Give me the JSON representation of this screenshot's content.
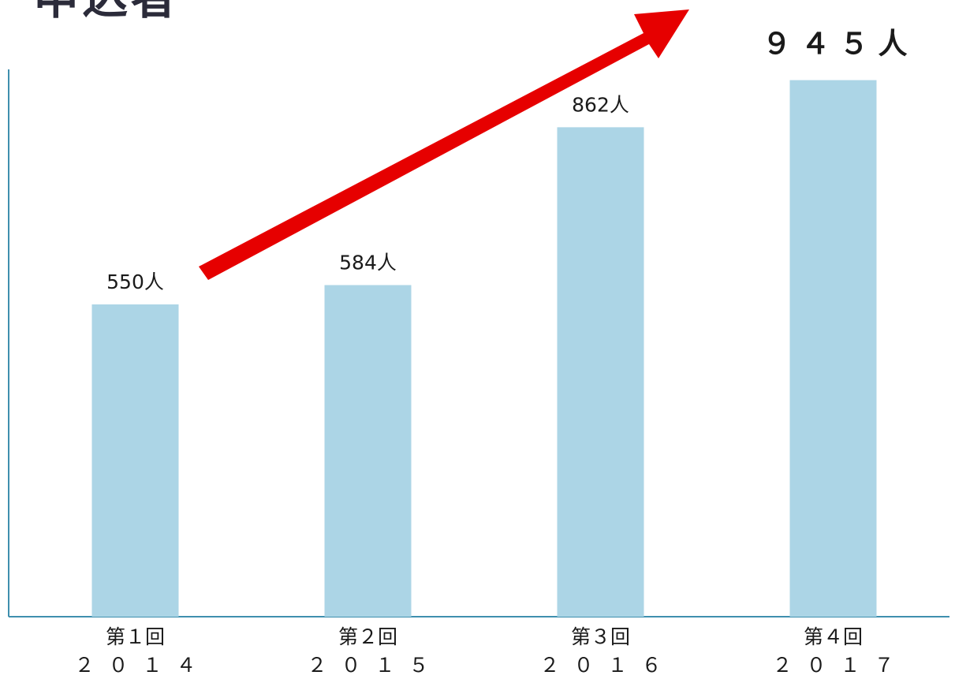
{
  "title": "申込者",
  "chart_data": {
    "type": "bar",
    "categories": [
      {
        "round": "第１回",
        "year": "２０１４"
      },
      {
        "round": "第２回",
        "year": "２０１５"
      },
      {
        "round": "第３回",
        "year": "２０１６"
      },
      {
        "round": "第４回",
        "year": "２０１７"
      }
    ],
    "values": [
      550,
      584,
      862,
      945
    ],
    "data_labels": [
      "550人",
      "584人",
      "862人",
      "９４５人"
    ],
    "highlight_index": 3,
    "ylim": [
      0,
      1000
    ],
    "grid": false,
    "legend": "none",
    "annotations": [
      "upward red trend arrow"
    ],
    "colors": {
      "bar": "#acd5e6",
      "axis": "#3f8fae",
      "arrow": "#e60000",
      "text": "#1a1a1a",
      "title": "#2b2b3a"
    }
  }
}
